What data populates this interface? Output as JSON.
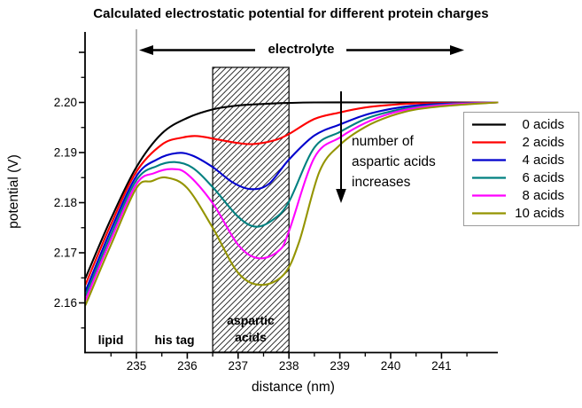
{
  "title": "Calculated electrostatic potential for different protein charges",
  "chart_data": {
    "type": "line",
    "title": "Calculated electrostatic potential for different protein charges",
    "xlabel": "distance (nm)",
    "ylabel": "potential (V)",
    "xlim": [
      234,
      242.1
    ],
    "ylim": [
      2.15,
      2.2141
    ],
    "grid": false,
    "legend_position": "right",
    "x_axis": {
      "label": "distance (nm)",
      "major_ticks": [
        235,
        236,
        237,
        238,
        239,
        240,
        241
      ],
      "major_tick_labels": [
        "235",
        "236",
        "237",
        "238",
        "239",
        "240",
        "241"
      ],
      "minor_ticks": [
        234.5,
        235.5,
        236.5,
        237.5,
        238.5,
        239.5,
        240.5,
        241.5
      ]
    },
    "y_axis": {
      "label": "potential (V)",
      "major_ticks": [
        2.2,
        2.19,
        2.18,
        2.17,
        2.16
      ],
      "major_tick_labels": [
        "2.20",
        "2.19",
        "2.18",
        "2.17",
        "2.16"
      ],
      "minor_ticks": [
        2.205,
        2.195,
        2.185,
        2.175,
        2.165,
        2.155
      ],
      "unlabeled_major_ticks": [
        2.21
      ]
    },
    "series": [
      {
        "name": "0 acids",
        "color": "#000000",
        "points": [
          [
            234,
            2.165
          ],
          [
            234.5,
            2.1768
          ],
          [
            235,
            2.1871
          ],
          [
            235.5,
            2.1938
          ],
          [
            236,
            2.1969
          ],
          [
            236.5,
            2.1986
          ],
          [
            237,
            2.1994
          ],
          [
            237.5,
            2.1997
          ],
          [
            238,
            2.1999
          ],
          [
            238.5,
            2.2
          ],
          [
            239.5,
            2.2
          ],
          [
            240.5,
            2.2
          ],
          [
            241.3,
            2.2
          ],
          [
            242.1,
            2.2
          ]
        ]
      },
      {
        "name": "2 acids",
        "color": "#fe0000",
        "points": [
          [
            234,
            2.1637
          ],
          [
            234.5,
            2.1757
          ],
          [
            235,
            2.1862
          ],
          [
            235.5,
            2.1916
          ],
          [
            235.9,
            2.193
          ],
          [
            236.2,
            2.1933
          ],
          [
            236.6,
            2.1926
          ],
          [
            237.0,
            2.1919
          ],
          [
            237.3,
            2.1917
          ],
          [
            237.7,
            2.1924
          ],
          [
            238,
            2.1937
          ],
          [
            238.5,
            2.1967
          ],
          [
            239,
            2.198
          ],
          [
            239.5,
            2.199
          ],
          [
            240,
            2.1995
          ],
          [
            240.5,
            2.1998
          ],
          [
            241.2,
            2.1999
          ],
          [
            242.1,
            2.2
          ]
        ]
      },
      {
        "name": "4 acids",
        "color": "#0000cd",
        "points": [
          [
            234,
            2.1624
          ],
          [
            234.5,
            2.1746
          ],
          [
            235,
            2.1853
          ],
          [
            235.4,
            2.1886
          ],
          [
            235.8,
            2.1899
          ],
          [
            236.1,
            2.1894
          ],
          [
            236.5,
            2.1871
          ],
          [
            236.9,
            2.184
          ],
          [
            237.25,
            2.1827
          ],
          [
            237.6,
            2.1837
          ],
          [
            238,
            2.1886
          ],
          [
            238.5,
            2.1934
          ],
          [
            239,
            2.1956
          ],
          [
            239.5,
            2.1975
          ],
          [
            240,
            2.1987
          ],
          [
            240.5,
            2.1994
          ],
          [
            241.2,
            2.1998
          ],
          [
            242.1,
            2.2
          ]
        ]
      },
      {
        "name": "6 acids",
        "color": "#008080",
        "points": [
          [
            234,
            2.1615
          ],
          [
            234.5,
            2.1736
          ],
          [
            235,
            2.1845
          ],
          [
            235.4,
            2.1873
          ],
          [
            235.75,
            2.1881
          ],
          [
            236.1,
            2.187
          ],
          [
            236.5,
            2.1831
          ],
          [
            237,
            2.1772
          ],
          [
            237.35,
            2.1752
          ],
          [
            237.7,
            2.1767
          ],
          [
            238,
            2.1802
          ],
          [
            238.5,
            2.191
          ],
          [
            239,
            2.1941
          ],
          [
            239.5,
            2.1967
          ],
          [
            240,
            2.1982
          ],
          [
            240.5,
            2.1991
          ],
          [
            241.2,
            2.1997
          ],
          [
            242.1,
            2.2
          ]
        ]
      },
      {
        "name": "8 acids",
        "color": "#ff00ff",
        "points": [
          [
            234,
            2.1606
          ],
          [
            234.5,
            2.1727
          ],
          [
            235,
            2.1837
          ],
          [
            235.35,
            2.1859
          ],
          [
            235.7,
            2.1867
          ],
          [
            236,
            2.1857
          ],
          [
            236.5,
            2.1799
          ],
          [
            237,
            2.1716
          ],
          [
            237.4,
            2.1689
          ],
          [
            237.8,
            2.1704
          ],
          [
            238,
            2.1743
          ],
          [
            238.5,
            2.189
          ],
          [
            239,
            2.193
          ],
          [
            239.5,
            2.1959
          ],
          [
            240,
            2.1978
          ],
          [
            240.5,
            2.1989
          ],
          [
            241.2,
            2.1996
          ],
          [
            242.1,
            2.2
          ]
        ]
      },
      {
        "name": "10 acids",
        "color": "#949400",
        "points": [
          [
            234,
            2.1596
          ],
          [
            234.5,
            2.1716
          ],
          [
            235,
            2.1829
          ],
          [
            235.3,
            2.1843
          ],
          [
            235.6,
            2.185
          ],
          [
            236,
            2.1829
          ],
          [
            236.5,
            2.175
          ],
          [
            237,
            2.166
          ],
          [
            237.45,
            2.1636
          ],
          [
            237.9,
            2.1657
          ],
          [
            238.2,
            2.1722
          ],
          [
            238.6,
            2.1862
          ],
          [
            239,
            2.1915
          ],
          [
            239.5,
            2.1951
          ],
          [
            240,
            2.1973
          ],
          [
            240.5,
            2.1986
          ],
          [
            241.2,
            2.1994
          ],
          [
            242.1,
            2.2
          ]
        ]
      }
    ],
    "regions": [
      {
        "label": "lipid",
        "x": [
          234,
          235
        ],
        "hatched": false
      },
      {
        "label": "his tag",
        "x": [
          235,
          236.5
        ],
        "hatched": false
      },
      {
        "label": "aspartic acids",
        "x": [
          236.5,
          238
        ],
        "hatched": true,
        "y_top": 2.207
      }
    ],
    "annotations": {
      "electrolyte": {
        "label": "electrolyte",
        "x": [
          235.07,
          241.43
        ],
        "style": "double-headed-arrow"
      },
      "increase": {
        "text": "number of\naspartic acids\nincreases",
        "arrow": "down",
        "arrow_x": 239.0
      }
    }
  }
}
